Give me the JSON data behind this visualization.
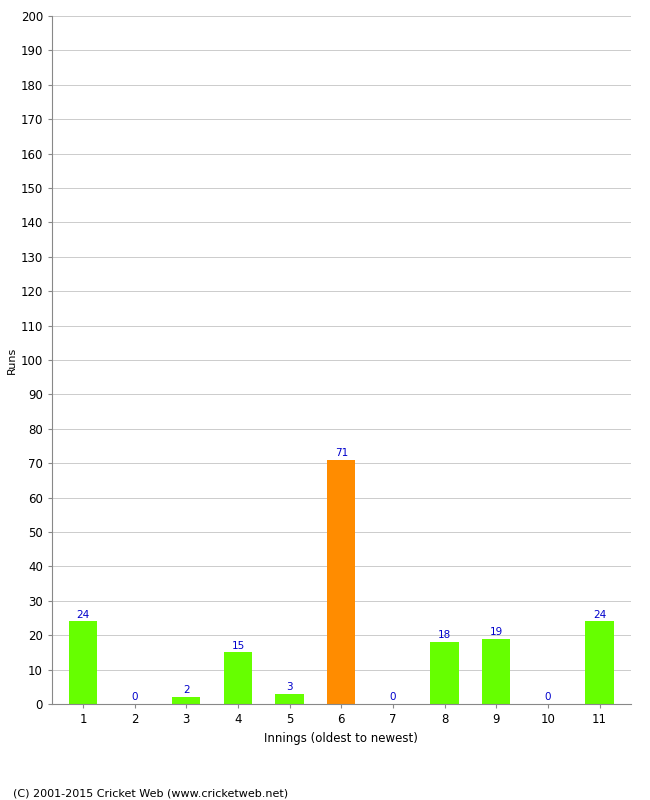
{
  "title": "",
  "xlabel": "Innings (oldest to newest)",
  "ylabel": "Runs",
  "categories": [
    "1",
    "2",
    "3",
    "4",
    "5",
    "6",
    "7",
    "8",
    "9",
    "10",
    "11"
  ],
  "values": [
    24,
    0,
    2,
    15,
    3,
    71,
    0,
    18,
    19,
    0,
    24
  ],
  "bar_colors": [
    "#66ff00",
    "#66ff00",
    "#66ff00",
    "#66ff00",
    "#66ff00",
    "#ff8c00",
    "#66ff00",
    "#66ff00",
    "#66ff00",
    "#66ff00",
    "#66ff00"
  ],
  "ylim": [
    0,
    200
  ],
  "ytick_step": 10,
  "label_color": "#0000cc",
  "label_fontsize": 7.5,
  "axis_fontsize": 8.5,
  "ylabel_fontsize": 8,
  "footer_text": "(C) 2001-2015 Cricket Web (www.cricketweb.net)",
  "footer_fontsize": 8,
  "background_color": "#ffffff",
  "grid_color": "#cccccc",
  "bar_width": 0.55
}
